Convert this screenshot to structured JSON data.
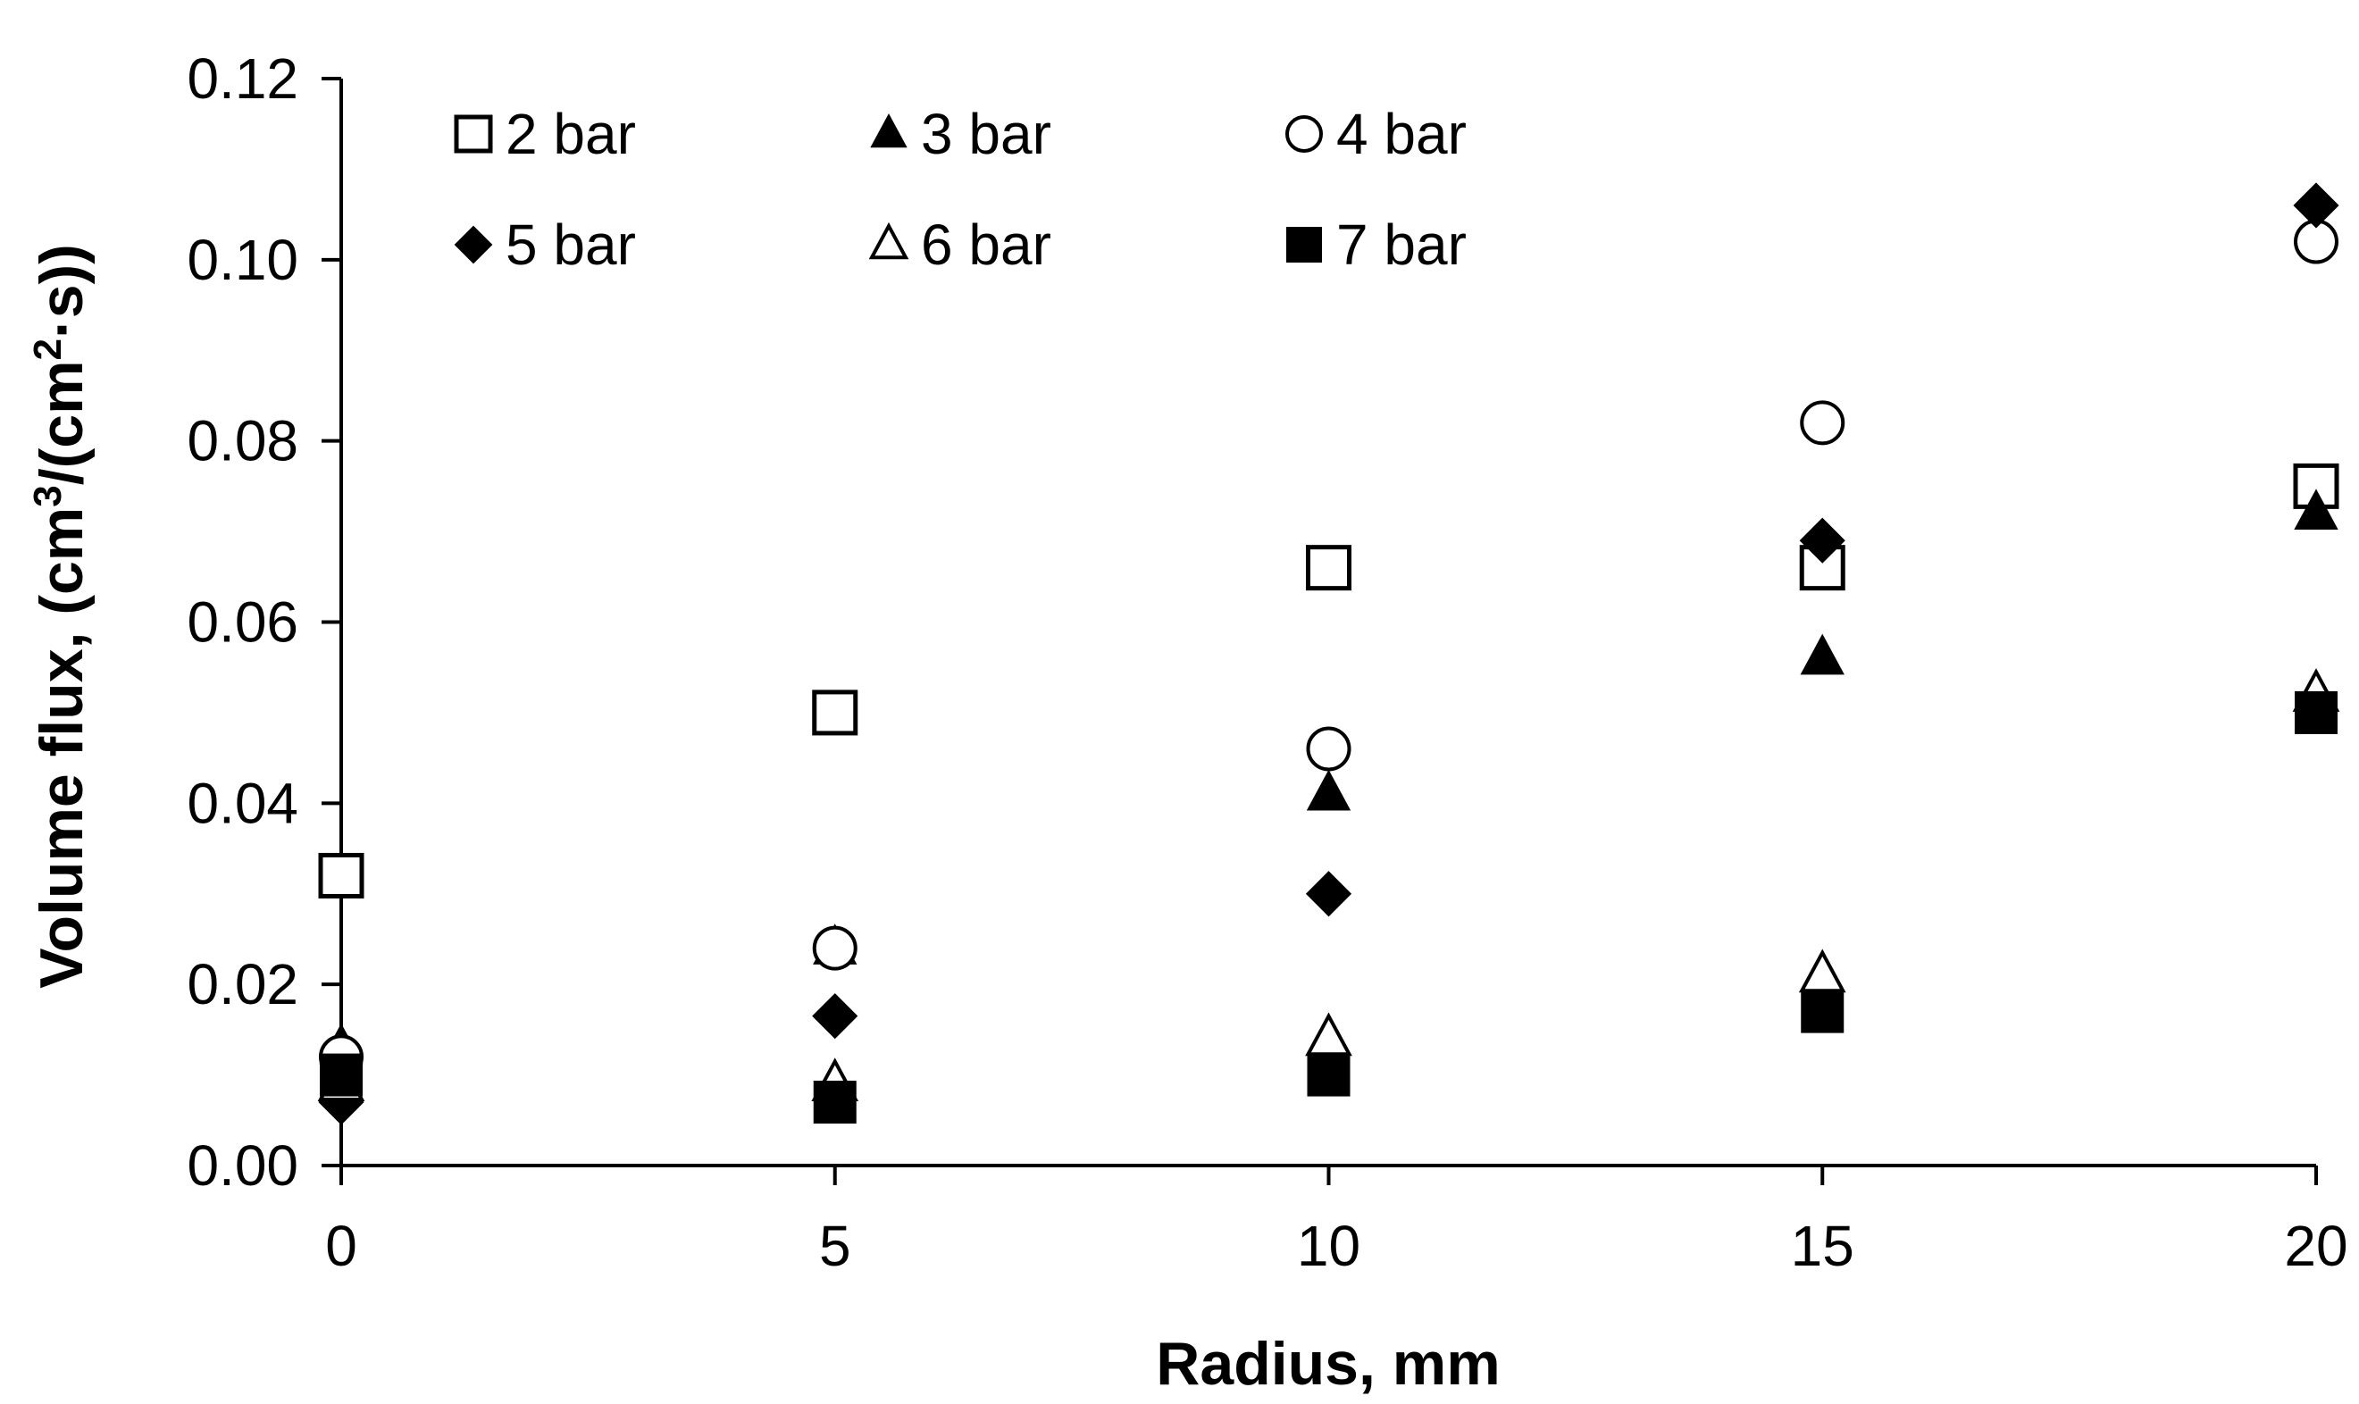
{
  "chart_data": {
    "type": "scatter",
    "xlabel": "Radius, mm",
    "ylabel_main": "Volume flux, (cm",
    "ylabel_sup1": "3",
    "ylabel_mid": "/(cm",
    "ylabel_sup2": "2",
    "ylabel_end": "·s))",
    "xlim": [
      0,
      20
    ],
    "ylim": [
      0,
      0.12
    ],
    "x_ticks": [
      0,
      5,
      10,
      15,
      20
    ],
    "x_tick_labels": [
      "0",
      "5",
      "10",
      "15",
      "20"
    ],
    "y_ticks": [
      0,
      0.02,
      0.04,
      0.06,
      0.08,
      0.1,
      0.12
    ],
    "y_tick_labels": [
      "0.00",
      "0.02",
      "0.04",
      "0.06",
      "0.08",
      "0.10",
      "0.12"
    ],
    "grid": false,
    "legend_position": "top",
    "series": [
      {
        "name": "2 bar",
        "marker": "square-open",
        "x": [
          0,
          5,
          10,
          15,
          20
        ],
        "values": [
          0.032,
          0.05,
          0.066,
          0.066,
          0.075
        ]
      },
      {
        "name": "3 bar",
        "marker": "triangle-filled",
        "x": [
          0,
          5,
          10,
          15,
          20
        ],
        "values": [
          0.013,
          0.024,
          0.041,
          0.056,
          0.072
        ]
      },
      {
        "name": "4 bar",
        "marker": "circle-open",
        "x": [
          0,
          5,
          10,
          15,
          20
        ],
        "values": [
          0.012,
          0.024,
          0.046,
          0.082,
          0.102
        ]
      },
      {
        "name": "5 bar",
        "marker": "diamond-filled",
        "x": [
          0,
          5,
          10,
          15,
          20
        ],
        "values": [
          0.007,
          0.0165,
          0.03,
          0.069,
          0.106
        ]
      },
      {
        "name": "6 bar",
        "marker": "triangle-open",
        "x": [
          0,
          5,
          10,
          15,
          20
        ],
        "values": [
          0.009,
          0.009,
          0.014,
          0.021,
          0.052
        ]
      },
      {
        "name": "7 bar",
        "marker": "square-filled",
        "x": [
          0,
          5,
          10,
          15,
          20
        ],
        "values": [
          0.01,
          0.007,
          0.01,
          0.017,
          0.05
        ]
      }
    ]
  }
}
